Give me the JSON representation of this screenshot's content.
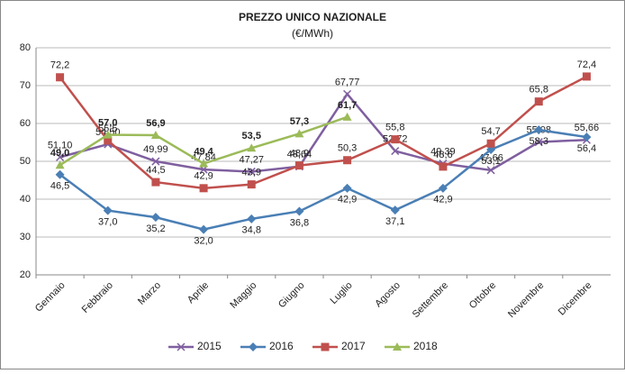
{
  "chart_data": {
    "type": "line",
    "title": "PREZZO UNICO NAZIONALE",
    "subtitle": "(€/MWh)",
    "categories": [
      "Gennaio",
      "Febbraio",
      "Marzo",
      "Aprile",
      "Maggio",
      "Giugno",
      "Luglio",
      "Agosto",
      "Settembre",
      "Ottobre",
      "Novembre",
      "Dicembre"
    ],
    "series": [
      {
        "name": "2015",
        "color": "#7f5f9f",
        "marker": "x",
        "values": [
          51.1,
          54.5,
          49.99,
          47.84,
          47.27,
          48.64,
          67.77,
          52.72,
          49.39,
          47.66,
          55.08,
          55.66
        ],
        "value_labels": [
          "51,10",
          "54,50",
          "49,99",
          "47,84",
          "47,27",
          "48,64",
          "67,77",
          "52,72",
          "49,39",
          "47,66",
          "55,08",
          "55,66"
        ]
      },
      {
        "name": "2016",
        "color": "#4a7fb5",
        "marker": "diamond",
        "values": [
          46.5,
          37.0,
          35.2,
          32.0,
          34.8,
          36.8,
          42.9,
          37.1,
          42.9,
          53.1,
          58.3,
          56.4
        ],
        "value_labels": [
          "46,5",
          "37,0",
          "35,2",
          "32,0",
          "34,8",
          "36,8",
          "42,9",
          "37,1",
          "42,9",
          "53,1",
          "58,3",
          "56,4"
        ]
      },
      {
        "name": "2017",
        "color": "#c0504d",
        "marker": "square",
        "values": [
          72.2,
          55.5,
          44.5,
          42.9,
          43.9,
          48.9,
          50.3,
          55.8,
          48.6,
          54.7,
          65.8,
          72.4
        ],
        "value_labels": [
          "72,2",
          "55,5",
          "44,5",
          "42,9",
          "43,9",
          "48,9",
          "50,3",
          "55,8",
          "48,6",
          "54,7",
          "65,8",
          "72,4"
        ]
      },
      {
        "name": "2018",
        "color": "#9bbb59",
        "marker": "triangle",
        "label_bold": true,
        "values": [
          49.0,
          57.0,
          56.9,
          49.4,
          53.5,
          57.3,
          61.7,
          null,
          null,
          null,
          null,
          null
        ],
        "value_labels": [
          "49,0",
          "57,0",
          "56,9",
          "49,4",
          "53,5",
          "57,3",
          "61,7",
          null,
          null,
          null,
          null,
          null
        ]
      }
    ],
    "ylim": [
      20,
      80
    ],
    "yticks": [
      20,
      30,
      40,
      50,
      60,
      70,
      80
    ],
    "grid": true,
    "legend": "bottom"
  }
}
